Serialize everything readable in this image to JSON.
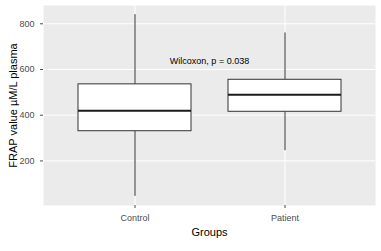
{
  "chart_data": {
    "type": "box",
    "x_label": "Groups",
    "y_label": "FRAP value µM/L plasma",
    "annotation": "Wilcoxon, p = 0.038",
    "categories": [
      "Control",
      "Patient"
    ],
    "boxes": [
      {
        "min": 45,
        "q1": 330,
        "median": 420,
        "q3": 535,
        "max": 840
      },
      {
        "min": 245,
        "q1": 415,
        "median": 490,
        "q3": 555,
        "max": 760
      }
    ],
    "color": "#ffffff",
    "ylim": [
      5,
      880
    ],
    "yticks": [
      200,
      400,
      600,
      800
    ],
    "grid": true
  }
}
